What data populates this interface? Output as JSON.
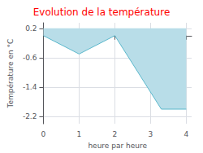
{
  "chart_data": {
    "type": "area",
    "title": "Evolution de la température",
    "title_color": "#ff0000",
    "xlabel": "heure par heure",
    "ylabel": "Température en °C",
    "x": [
      0,
      1,
      2,
      3.3,
      4
    ],
    "values": [
      0.0,
      -0.5,
      0.0,
      -2.0,
      -2.0
    ],
    "color": "#5bb8cc",
    "fill_top": 0.2,
    "fill_color": "#b8dde8",
    "xlim": [
      0,
      4.15
    ],
    "ylim": [
      -2.4,
      0.35
    ],
    "xticks": [
      0,
      1,
      2,
      3,
      4
    ],
    "yticks": [
      0.2,
      -0.6,
      -1.4,
      -2.2
    ],
    "grid": true
  }
}
